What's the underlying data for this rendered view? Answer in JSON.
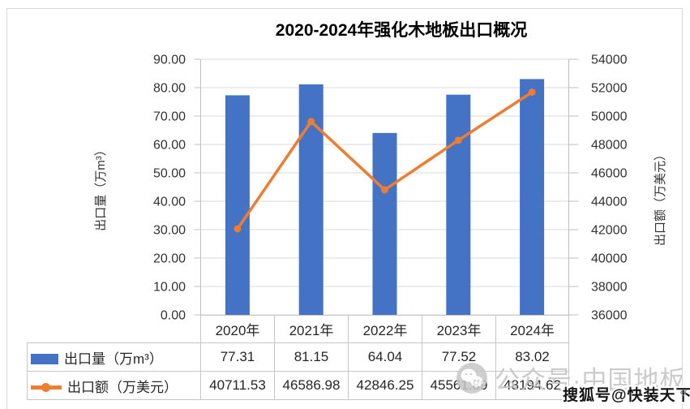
{
  "title": "2020-2024年强化木地板出口概况",
  "chart_data": {
    "type": "combo-bar-line",
    "categories": [
      "2020年",
      "2021年",
      "2022年",
      "2023年",
      "2024年"
    ],
    "series": [
      {
        "name": "出口量（万m³）",
        "type": "bar",
        "axis": "left",
        "color": "#4472C4",
        "values": [
          77.31,
          81.15,
          64.04,
          77.52,
          83.02
        ]
      },
      {
        "name": "出口额（万美元）",
        "type": "line",
        "axis": "right",
        "color": "#ED7D31",
        "values": [
          40711.53,
          46586.98,
          42846.25,
          45561.89,
          48194.62
        ]
      }
    ],
    "left_axis": {
      "title": "出口量（万m³）",
      "min": 0,
      "max": 90,
      "step": 10,
      "decimals": 2
    },
    "right_axis": {
      "title": "出口额（万美元）",
      "min": 36000,
      "max": 50000,
      "step": 2000,
      "decimals": 0
    },
    "grid": true,
    "legend_position": "data-table-left"
  },
  "watermarks": {
    "wechat_text": "公众号·中国地板",
    "sohu_text": "搜狐号@快装天下",
    "chevrons": "«"
  },
  "colors": {
    "bar": "#4472C4",
    "line": "#ED7D31",
    "gridline": "#D9D9D9",
    "axis_line": "#BFBFBF",
    "tick_text": "#333333",
    "watermark_gray": "#C6C6C6"
  }
}
